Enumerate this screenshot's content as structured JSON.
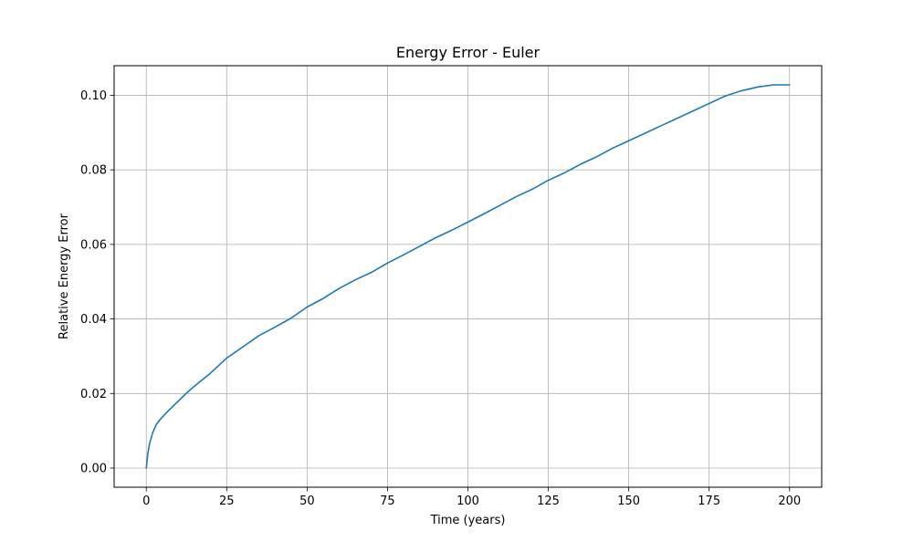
{
  "chart_data": {
    "type": "line",
    "title": "Energy Error - Euler",
    "xlabel": "Time (years)",
    "ylabel": "Relative Energy Error",
    "xlim": [
      -10,
      210
    ],
    "ylim": [
      -0.00514,
      0.10794
    ],
    "xticks": [
      0,
      25,
      50,
      75,
      100,
      125,
      150,
      175,
      200
    ],
    "xtick_labels": [
      "0",
      "25",
      "50",
      "75",
      "100",
      "125",
      "150",
      "175",
      "200"
    ],
    "yticks": [
      0.0,
      0.02,
      0.04,
      0.06,
      0.08,
      0.1
    ],
    "ytick_labels": [
      "0.00",
      "0.02",
      "0.04",
      "0.06",
      "0.08",
      "0.10"
    ],
    "grid": true,
    "legend": "none",
    "series": [
      {
        "color": "#1f77b4",
        "x": [
          0,
          0.5,
          1,
          2,
          3,
          4,
          5,
          7,
          10,
          13,
          15,
          20,
          25,
          30,
          35,
          40,
          45,
          50,
          55,
          60,
          65,
          70,
          75,
          80,
          85,
          90,
          95,
          100,
          105,
          110,
          115,
          120,
          125,
          130,
          135,
          140,
          145,
          150,
          155,
          160,
          165,
          170,
          175,
          180,
          185,
          190,
          195,
          200
        ],
        "y": [
          0.0,
          0.004,
          0.0065,
          0.0095,
          0.0115,
          0.0127,
          0.0137,
          0.0155,
          0.018,
          0.0205,
          0.022,
          0.0255,
          0.0295,
          0.0325,
          0.0355,
          0.0378,
          0.0402,
          0.0432,
          0.0455,
          0.0482,
          0.0505,
          0.0525,
          0.055,
          0.0572,
          0.0595,
          0.0618,
          0.0638,
          0.066,
          0.0682,
          0.0705,
          0.0728,
          0.0748,
          0.0772,
          0.0792,
          0.0815,
          0.0835,
          0.0858,
          0.0878,
          0.0898,
          0.0918,
          0.0938,
          0.0958,
          0.0978,
          0.0998,
          0.1012,
          0.1022,
          0.1028,
          0.1028
        ]
      }
    ]
  }
}
